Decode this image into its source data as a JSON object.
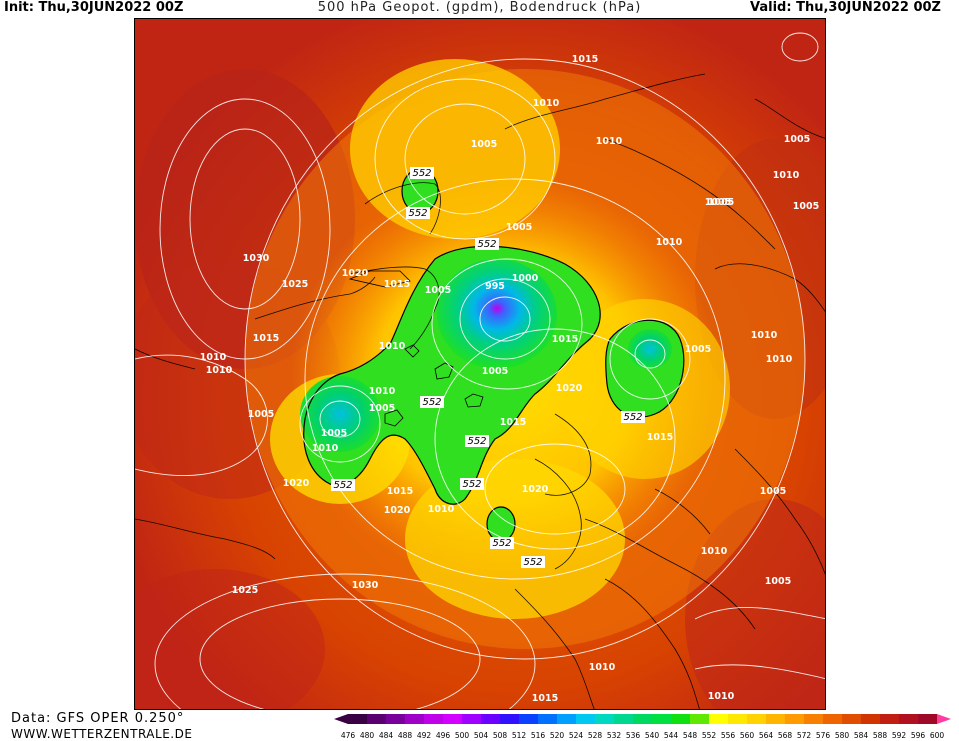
{
  "header": {
    "init": "Init: Thu,30JUN2022 00Z",
    "title": "500 hPa Geopot. (gpdm), Bodendruck (hPa)",
    "valid": "Valid: Thu,30JUN2022 00Z"
  },
  "footer": {
    "data_source": "Data: GFS OPER 0.250°",
    "website": "WWW.WETTERZENTRALE.DE"
  },
  "colorbar": {
    "ticks": [
      "476",
      "480",
      "484",
      "488",
      "492",
      "496",
      "500",
      "504",
      "508",
      "512",
      "516",
      "520",
      "524",
      "528",
      "532",
      "536",
      "540",
      "544",
      "548",
      "552",
      "556",
      "560",
      "564",
      "568",
      "572",
      "576",
      "580",
      "584",
      "588",
      "592",
      "596",
      "600"
    ],
    "colors": [
      "#3a0044",
      "#5a0070",
      "#7a009c",
      "#9e00c8",
      "#c000e8",
      "#d400ff",
      "#a000ff",
      "#6a00ff",
      "#3010ff",
      "#0a40ff",
      "#0070ff",
      "#00a0ff",
      "#00c8f0",
      "#00d8c0",
      "#00d890",
      "#00d860",
      "#00e040",
      "#10e010",
      "#60e800",
      "#ffff00",
      "#ffe800",
      "#ffd200",
      "#ffb400",
      "#ff9a00",
      "#f88000",
      "#f06400",
      "#e04c00",
      "#d03400",
      "#c01e10",
      "#b01020",
      "#a00828",
      "#ff3ca0"
    ]
  },
  "map": {
    "height_labels": [
      "552",
      "552",
      "552",
      "552",
      "552",
      "552",
      "552",
      "552",
      "552",
      "552",
      "552"
    ],
    "pressure_labels": [
      "1015",
      "1010",
      "1010",
      "1005",
      "1005",
      "1005",
      "1005",
      "1010",
      "1005",
      "1010",
      "1005",
      "1030",
      "1025",
      "1020",
      "1015",
      "1005",
      "1000",
      "995",
      "1015",
      "1010",
      "1010",
      "1010",
      "1015",
      "1005",
      "1005",
      "1010",
      "1010",
      "1005",
      "1005",
      "1010",
      "1005",
      "1020",
      "1015",
      "1015",
      "1010",
      "1020",
      "1020",
      "1015",
      "1010",
      "1020",
      "1005",
      "1010",
      "1005",
      "1025",
      "1030",
      "1010",
      "1015",
      "1010"
    ]
  }
}
